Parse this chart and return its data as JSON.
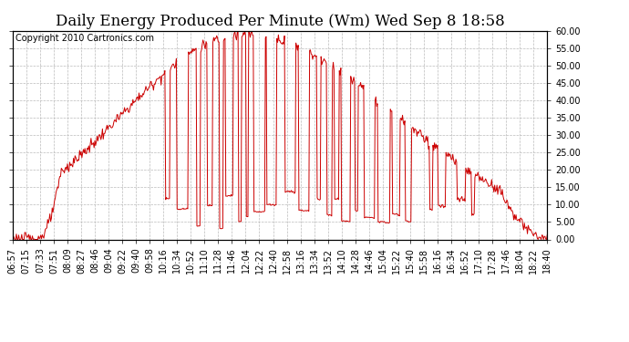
{
  "title": "Daily Energy Produced Per Minute (Wm) Wed Sep 8 18:58",
  "copyright": "Copyright 2010 Cartronics.com",
  "line_color": "#cc0000",
  "bg_color": "#ffffff",
  "plot_bg_color": "#ffffff",
  "grid_color": "#bbbbbb",
  "ylim": [
    0.0,
    60.0
  ],
  "ytick_step": 5.0,
  "title_fontsize": 12,
  "copyright_fontsize": 7,
  "tick_fontsize": 7,
  "x_tick_labels": [
    "06:57",
    "07:15",
    "07:33",
    "07:51",
    "08:09",
    "08:27",
    "08:46",
    "09:04",
    "09:22",
    "09:40",
    "09:58",
    "10:16",
    "10:34",
    "10:52",
    "11:10",
    "11:28",
    "11:46",
    "12:04",
    "12:22",
    "12:40",
    "12:58",
    "13:16",
    "13:34",
    "13:52",
    "14:10",
    "14:28",
    "14:46",
    "15:04",
    "15:22",
    "15:40",
    "15:58",
    "16:16",
    "16:34",
    "16:52",
    "17:10",
    "17:28",
    "17:46",
    "18:04",
    "18:22",
    "18:40"
  ]
}
